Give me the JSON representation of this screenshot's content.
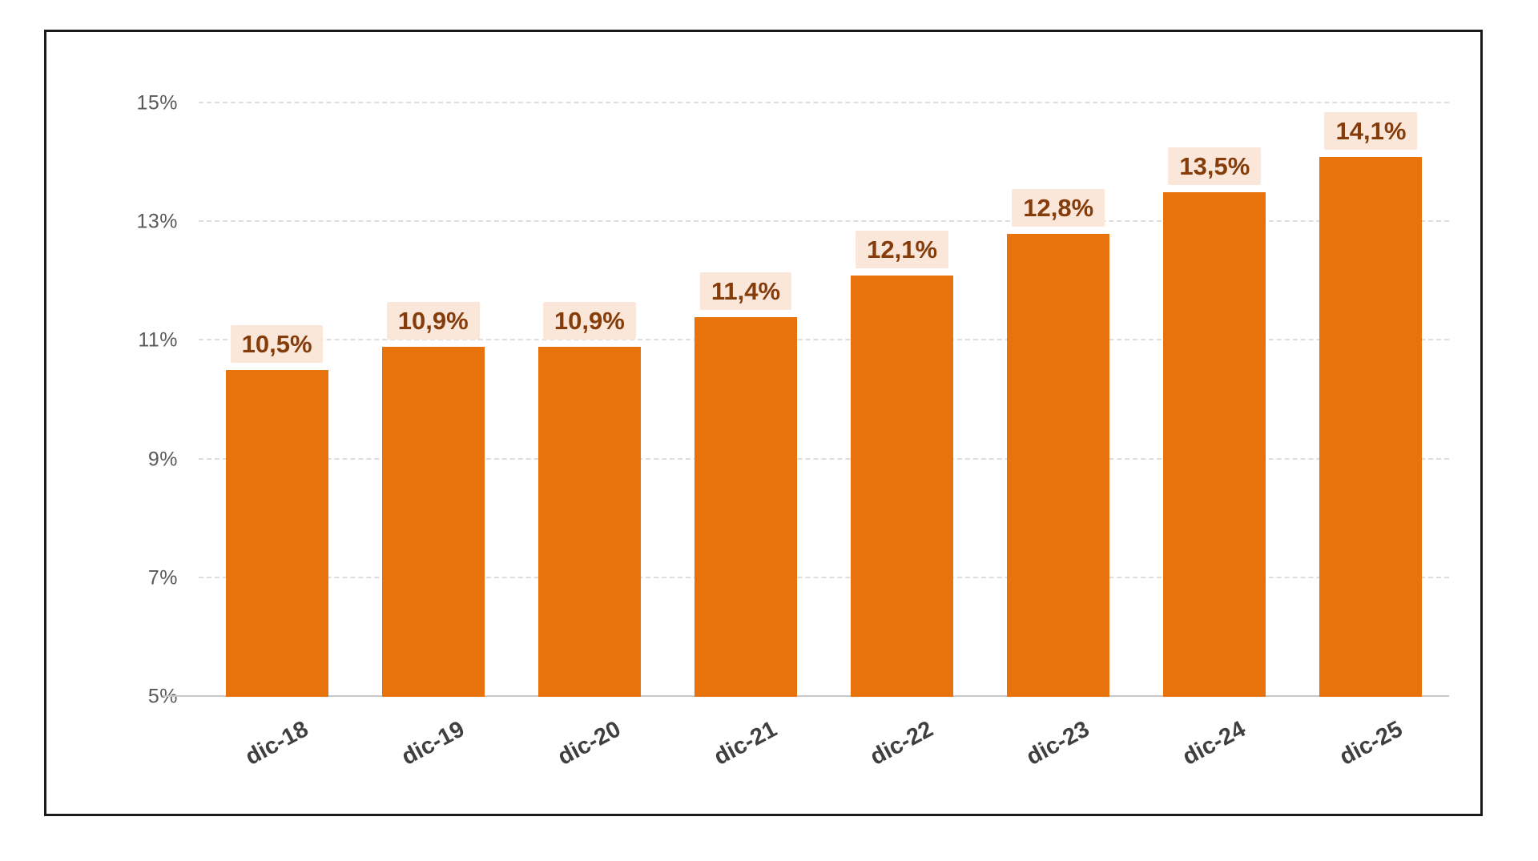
{
  "chart_data": {
    "type": "bar",
    "title": "",
    "xlabel": "",
    "ylabel": "",
    "categories": [
      "dic-18",
      "dic-19",
      "dic-20",
      "dic-21",
      "dic-22",
      "dic-23",
      "dic-24",
      "dic-25"
    ],
    "values": [
      10.5,
      10.9,
      10.9,
      11.4,
      12.1,
      12.8,
      13.5,
      14.1
    ],
    "data_labels": [
      "10,5%",
      "10,9%",
      "10,9%",
      "11,4%",
      "12,1%",
      "12,8%",
      "13,5%",
      "14,1%"
    ],
    "ylim": [
      5,
      15
    ],
    "yticks": [
      {
        "value": 5,
        "label": "5%"
      },
      {
        "value": 7,
        "label": "7%"
      },
      {
        "value": 9,
        "label": "9%"
      },
      {
        "value": 11,
        "label": "11%"
      },
      {
        "value": 13,
        "label": "13%"
      },
      {
        "value": 15,
        "label": "15%"
      }
    ],
    "grid": "horizontal-dashed",
    "legend": "none",
    "bar_color": "#E8720C",
    "label_bg_color": "#FBE7DA",
    "label_text_color": "#843C0B",
    "tick_text_color": "#595959",
    "xlabel_text_color": "#3F3F3F",
    "gridline_color": "#DEDEDE",
    "baseline_color": "#C8C8C8",
    "frame_border_color": "#1A1A1A"
  }
}
